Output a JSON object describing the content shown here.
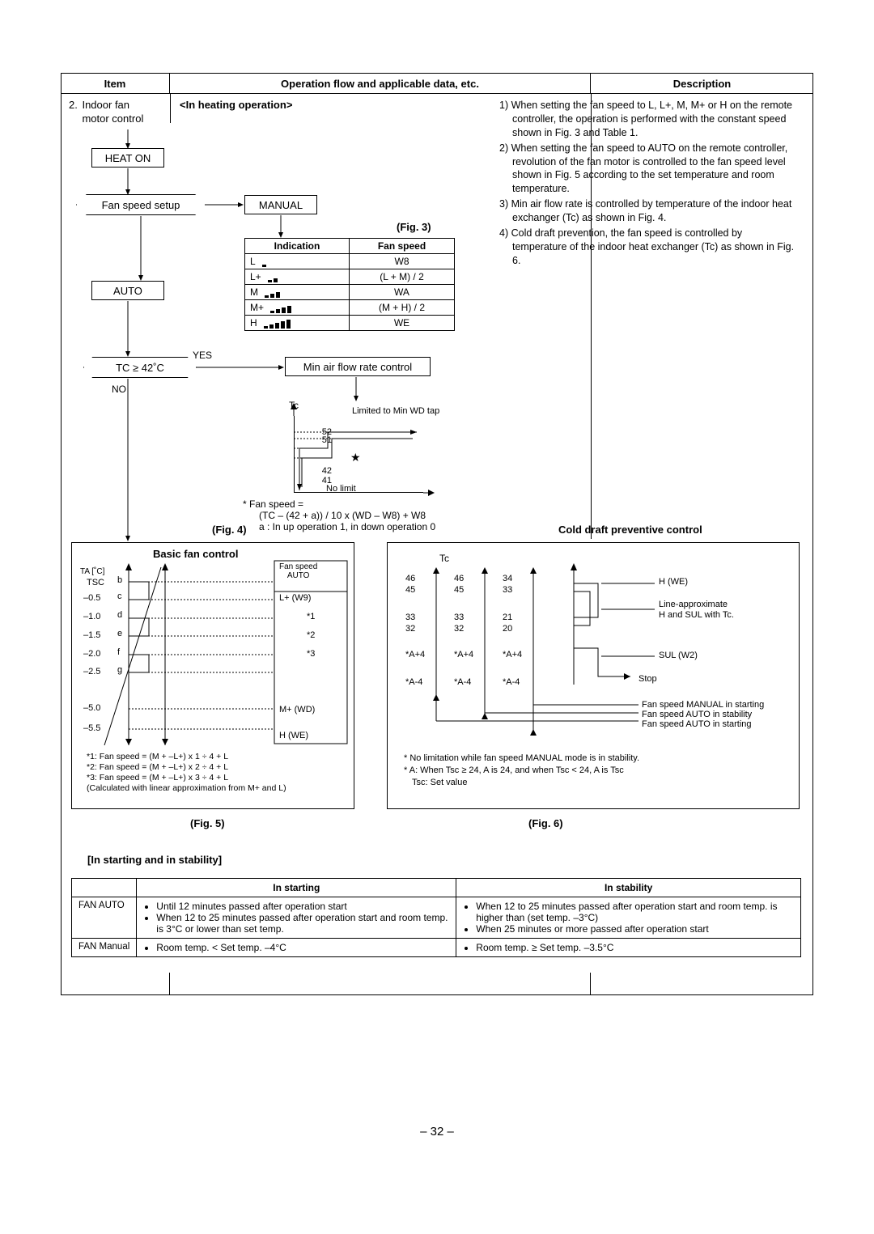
{
  "header": {
    "c1": "Item",
    "c2": "Operation flow and applicable data, etc.",
    "c3": "Description"
  },
  "item": {
    "num": "2.",
    "name": "Indoor fan\nmotor control"
  },
  "mode_heading": "<In heating operation>",
  "flow": {
    "heat_on": "HEAT ON",
    "fan_speed_setup": "Fan speed setup",
    "manual": "MANUAL",
    "auto": "AUTO",
    "tc_cond": "TC ≥ 42˚C",
    "yes": "YES",
    "no": "NO",
    "min_air": "Min air flow rate control"
  },
  "desc": {
    "d1": "1) When setting the fan speed to L, L+, M, M+ or H on the remote controller, the operation is performed with the constant speed shown in Fig. 3 and Table 1.",
    "d2": "2) When setting the fan speed to AUTO on the remote controller, revolution of the fan motor is controlled to the fan speed level shown in Fig. 5 according to the set temperature and room temperature.",
    "d3": "3) Min air flow rate is controlled by temperature of the indoor heat exchanger (Tc) as shown in Fig. 4.",
    "d4": "4) Cold draft prevention, the fan speed is controlled by temperature of the indoor heat exchanger (Tc) as shown in Fig. 6."
  },
  "fig3": {
    "caption": "(Fig. 3)",
    "hInd": "Indication",
    "hFan": "Fan speed",
    "rows": [
      {
        "ind": "L",
        "bars": 1,
        "fan": "W8"
      },
      {
        "ind": "L+",
        "bars": 2,
        "fan": "(L + M) / 2"
      },
      {
        "ind": "M",
        "bars": 3,
        "fan": "WA"
      },
      {
        "ind": "M+",
        "bars": 4,
        "fan": "(M + H) / 2"
      },
      {
        "ind": "H",
        "bars": 5,
        "fan": "WE"
      }
    ]
  },
  "fig4": {
    "caption": "(Fig. 4)",
    "tc": "Tc",
    "y52": "52",
    "y51": "51",
    "y42": "42",
    "y41": "41",
    "limited": "Limited to Min WD tap",
    "nolimit": "No limit",
    "star": "★",
    "eq_head": "* Fan speed =",
    "eq_line": "(TC – (42 + a)) / 10 x (WD – W8) + W8",
    "eq_note": "a : In up operation 1, in down operation 0"
  },
  "cold_draft_h": "Cold draft preventive control",
  "fig5": {
    "title": "Basic fan control",
    "caption": "(Fig. 5)",
    "ta": "TA [˚C]",
    "tsc": "TSC",
    "yb": "b",
    "yc": "c",
    "yd": "d",
    "ye": "e",
    "yf": "f",
    "yg": "g",
    "y05": "–0.5",
    "y10": "–1.0",
    "y15": "–1.5",
    "y20": "–2.0",
    "y25": "–2.5",
    "y50": "–5.0",
    "y55": "–5.5",
    "rlbl_auto": "Fan speed\nAUTO",
    "rlbl_l": "L+ (W9)",
    "rlbl_1": "*1",
    "rlbl_2": "*2",
    "rlbl_3": "*3",
    "rlbl_m": "M+ (WD)",
    "rlbl_h": "H (WE)",
    "notes": "*1: Fan speed = (M + –L+) x 1 ÷ 4 + L\n*2: Fan speed = (M + –L+) x 2 ÷ 4 + L\n*3: Fan speed = (M + –L+) x 3 ÷ 4 + L\n(Calculated with linear approximation from M+ and L)"
  },
  "fig6": {
    "caption": "(Fig. 6)",
    "tc": "Tc",
    "col1": [
      "46",
      "45",
      "",
      "33",
      "32",
      "",
      "*A+4",
      "",
      "*A-4"
    ],
    "col2": [
      "46",
      "45",
      "",
      "33",
      "32",
      "",
      "*A+4",
      "",
      "*A-4"
    ],
    "col3": [
      "34",
      "33",
      "",
      "21",
      "20",
      "",
      "*A+4",
      "",
      "*A-4"
    ],
    "r_h": "H (WE)",
    "r_line": "Line-approximate\nH and SUL with Tc.",
    "r_sul": "SUL (W2)",
    "r_stop": "Stop",
    "legend1": "Fan speed MANUAL in starting",
    "legend2": "Fan speed AUTO in stability",
    "legend3": "Fan speed AUTO in starting",
    "note1": "* No limitation while fan speed MANUAL mode is in stability.",
    "note2": "* A: When Tsc ≥ 24, A is 24, and when Tsc < 24, A is Tsc",
    "note3": "Tsc: Set value"
  },
  "ss": {
    "head": "[In starting and in stability]",
    "h1": "In starting",
    "h2": "In stability",
    "row1lbl": "FAN AUTO",
    "row1a": [
      "Until 12 minutes passed after operation start",
      "When 12 to 25 minutes passed after operation start and room temp. is 3°C or lower than set temp."
    ],
    "row1b": [
      "When 12 to 25 minutes passed after operation start and room temp. is higher than (set temp. –3°C)",
      "When 25 minutes or more passed after operation start"
    ],
    "row2lbl": "FAN Manual",
    "row2a": [
      "Room temp. < Set temp. –4°C"
    ],
    "row2b": [
      "Room temp. ≥ Set temp. –3.5°C"
    ]
  },
  "page": "– 32 –"
}
